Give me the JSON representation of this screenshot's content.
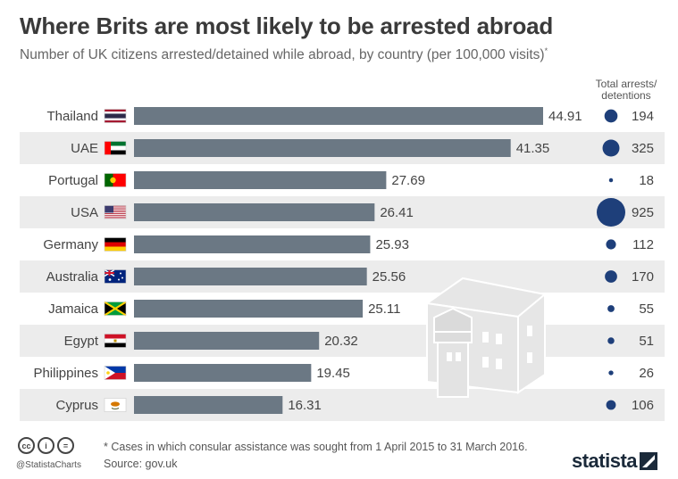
{
  "header": {
    "title": "Where Brits are most likely to be arrested abroad",
    "subtitle": "Number of UK citizens arrested/detained while abroad, by country (per 100,000 visits)",
    "subtitle_mark": "*"
  },
  "right_column": {
    "header_line1": "Total arrests/",
    "header_line2": "detentions"
  },
  "footer": {
    "note": "* Cases in which consular assistance was sought from 1 April 2015 to 31 March 2016.",
    "source": "Source: gov.uk",
    "handle": "@StatistaCharts",
    "brand": "statista"
  },
  "colors": {
    "bar": "#6b7884",
    "stripe": "#ececec",
    "dot": "#1e3f7a"
  },
  "chart_data": {
    "type": "bar",
    "orientation": "horizontal",
    "categories": [
      "Thailand",
      "UAE",
      "Portugal",
      "USA",
      "Germany",
      "Australia",
      "Jamaica",
      "Egypt",
      "Philippines",
      "Cyprus"
    ],
    "series": [
      {
        "name": "",
        "values": [
          44.91,
          41.35,
          27.69,
          26.41,
          25.93,
          25.56,
          25.11,
          20.32,
          19.45,
          16.31
        ]
      }
    ],
    "total_arrests": [
      194,
      325,
      18,
      925,
      112,
      170,
      55,
      51,
      26,
      106
    ],
    "value_labels": [
      "44.91",
      "41.35",
      "27.69",
      "26.41",
      "25.93",
      "25.56",
      "25.11",
      "20.32",
      "19.45",
      "16.31"
    ],
    "xlim": [
      0,
      50
    ],
    "flags": [
      "thailand-flag-icon",
      "uae-flag-icon",
      "portugal-flag-icon",
      "usa-flag-icon",
      "germany-flag-icon",
      "australia-flag-icon",
      "jamaica-flag-icon",
      "egypt-flag-icon",
      "philippines-flag-icon",
      "cyprus-flag-icon"
    ],
    "grid": false,
    "legend": "none"
  }
}
